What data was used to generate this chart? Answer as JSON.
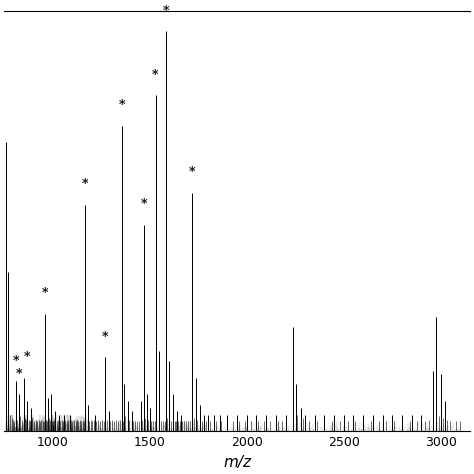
{
  "xlim": [
    750,
    3150
  ],
  "ylim": [
    0,
    2.5
  ],
  "xlabel": "m/z",
  "xticks": [
    1000,
    1500,
    2000,
    2500,
    3000
  ],
  "background_color": "#ffffff",
  "major_peaks": [
    {
      "mz": 760,
      "intensity": 1.72
    },
    {
      "mz": 770,
      "intensity": 0.95
    },
    {
      "mz": 810,
      "intensity": 0.3
    },
    {
      "mz": 825,
      "intensity": 0.22
    },
    {
      "mz": 850,
      "intensity": 0.32
    },
    {
      "mz": 870,
      "intensity": 0.18
    },
    {
      "mz": 890,
      "intensity": 0.14
    },
    {
      "mz": 960,
      "intensity": 0.7
    },
    {
      "mz": 975,
      "intensity": 0.2
    },
    {
      "mz": 992,
      "intensity": 0.22
    },
    {
      "mz": 1010,
      "intensity": 0.12
    },
    {
      "mz": 1035,
      "intensity": 0.1
    },
    {
      "mz": 1060,
      "intensity": 0.1
    },
    {
      "mz": 1090,
      "intensity": 0.1
    },
    {
      "mz": 1168,
      "intensity": 1.35
    },
    {
      "mz": 1180,
      "intensity": 0.16
    },
    {
      "mz": 1220,
      "intensity": 0.1
    },
    {
      "mz": 1270,
      "intensity": 0.44
    },
    {
      "mz": 1290,
      "intensity": 0.12
    },
    {
      "mz": 1355,
      "intensity": 1.82
    },
    {
      "mz": 1370,
      "intensity": 0.28
    },
    {
      "mz": 1390,
      "intensity": 0.18
    },
    {
      "mz": 1410,
      "intensity": 0.12
    },
    {
      "mz": 1455,
      "intensity": 0.18
    },
    {
      "mz": 1470,
      "intensity": 1.23
    },
    {
      "mz": 1485,
      "intensity": 0.22
    },
    {
      "mz": 1500,
      "intensity": 0.14
    },
    {
      "mz": 1530,
      "intensity": 2.0
    },
    {
      "mz": 1548,
      "intensity": 0.48
    },
    {
      "mz": 1584,
      "intensity": 2.38
    },
    {
      "mz": 1600,
      "intensity": 0.42
    },
    {
      "mz": 1620,
      "intensity": 0.22
    },
    {
      "mz": 1640,
      "intensity": 0.12
    },
    {
      "mz": 1660,
      "intensity": 0.1
    },
    {
      "mz": 1720,
      "intensity": 1.42
    },
    {
      "mz": 1738,
      "intensity": 0.32
    },
    {
      "mz": 1760,
      "intensity": 0.16
    },
    {
      "mz": 1780,
      "intensity": 0.1
    },
    {
      "mz": 1800,
      "intensity": 0.1
    },
    {
      "mz": 1830,
      "intensity": 0.1
    },
    {
      "mz": 1860,
      "intensity": 0.1
    },
    {
      "mz": 1900,
      "intensity": 0.1
    },
    {
      "mz": 1950,
      "intensity": 0.1
    },
    {
      "mz": 2000,
      "intensity": 0.1
    },
    {
      "mz": 2050,
      "intensity": 0.1
    },
    {
      "mz": 2100,
      "intensity": 0.1
    },
    {
      "mz": 2150,
      "intensity": 0.1
    },
    {
      "mz": 2200,
      "intensity": 0.1
    },
    {
      "mz": 2240,
      "intensity": 0.62
    },
    {
      "mz": 2256,
      "intensity": 0.28
    },
    {
      "mz": 2280,
      "intensity": 0.14
    },
    {
      "mz": 2300,
      "intensity": 0.1
    },
    {
      "mz": 2350,
      "intensity": 0.1
    },
    {
      "mz": 2400,
      "intensity": 0.1
    },
    {
      "mz": 2450,
      "intensity": 0.1
    },
    {
      "mz": 2500,
      "intensity": 0.1
    },
    {
      "mz": 2550,
      "intensity": 0.1
    },
    {
      "mz": 2600,
      "intensity": 0.1
    },
    {
      "mz": 2650,
      "intensity": 0.1
    },
    {
      "mz": 2700,
      "intensity": 0.1
    },
    {
      "mz": 2750,
      "intensity": 0.1
    },
    {
      "mz": 2800,
      "intensity": 0.1
    },
    {
      "mz": 2850,
      "intensity": 0.1
    },
    {
      "mz": 2900,
      "intensity": 0.1
    },
    {
      "mz": 2960,
      "intensity": 0.36
    },
    {
      "mz": 2978,
      "intensity": 0.68
    },
    {
      "mz": 3000,
      "intensity": 0.34
    },
    {
      "mz": 3020,
      "intensity": 0.18
    }
  ],
  "star_annotations": [
    {
      "mz": 810,
      "star_y": 0.38
    },
    {
      "mz": 825,
      "star_y": 0.3
    },
    {
      "mz": 870,
      "star_y": 0.4
    },
    {
      "mz": 960,
      "star_y": 0.78
    },
    {
      "mz": 1168,
      "star_y": 1.43
    },
    {
      "mz": 1270,
      "star_y": 0.52
    },
    {
      "mz": 1355,
      "star_y": 1.9
    },
    {
      "mz": 1470,
      "star_y": 1.31
    },
    {
      "mz": 1530,
      "star_y": 2.08
    },
    {
      "mz": 1584,
      "star_y": 2.46
    },
    {
      "mz": 1720,
      "star_y": 1.5
    }
  ],
  "noise_peaks_800_1100": [
    [
      780,
      0.1
    ],
    [
      788,
      0.08
    ],
    [
      795,
      0.07
    ],
    [
      800,
      0.06
    ],
    [
      815,
      0.07
    ],
    [
      833,
      0.09
    ],
    [
      840,
      0.07
    ],
    [
      855,
      0.08
    ],
    [
      863,
      0.07
    ],
    [
      878,
      0.07
    ],
    [
      885,
      0.06
    ],
    [
      895,
      0.08
    ],
    [
      905,
      0.06
    ],
    [
      912,
      0.07
    ],
    [
      920,
      0.06
    ],
    [
      928,
      0.07
    ],
    [
      935,
      0.06
    ],
    [
      942,
      0.07
    ],
    [
      948,
      0.06
    ],
    [
      955,
      0.06
    ],
    [
      965,
      0.07
    ],
    [
      970,
      0.06
    ],
    [
      980,
      0.08
    ],
    [
      988,
      0.07
    ],
    [
      995,
      0.06
    ],
    [
      1000,
      0.06
    ],
    [
      1005,
      0.07
    ],
    [
      1012,
      0.06
    ],
    [
      1020,
      0.06
    ],
    [
      1028,
      0.07
    ],
    [
      1040,
      0.06
    ],
    [
      1048,
      0.07
    ],
    [
      1055,
      0.06
    ],
    [
      1065,
      0.07
    ],
    [
      1072,
      0.06
    ],
    [
      1080,
      0.07
    ],
    [
      1088,
      0.06
    ],
    [
      1095,
      0.07
    ],
    [
      1102,
      0.06
    ],
    [
      1110,
      0.07
    ],
    [
      1118,
      0.06
    ],
    [
      1125,
      0.07
    ],
    [
      1132,
      0.06
    ],
    [
      1140,
      0.07
    ],
    [
      1148,
      0.06
    ],
    [
      1155,
      0.07
    ],
    [
      1160,
      0.06
    ]
  ],
  "noise_peaks_1100_1800": [
    [
      1185,
      0.06
    ],
    [
      1195,
      0.07
    ],
    [
      1205,
      0.06
    ],
    [
      1215,
      0.07
    ],
    [
      1225,
      0.06
    ],
    [
      1235,
      0.07
    ],
    [
      1245,
      0.06
    ],
    [
      1255,
      0.07
    ],
    [
      1265,
      0.06
    ],
    [
      1280,
      0.07
    ],
    [
      1295,
      0.06
    ],
    [
      1305,
      0.07
    ],
    [
      1315,
      0.06
    ],
    [
      1325,
      0.07
    ],
    [
      1335,
      0.06
    ],
    [
      1345,
      0.07
    ],
    [
      1360,
      0.06
    ],
    [
      1375,
      0.09
    ],
    [
      1395,
      0.07
    ],
    [
      1415,
      0.06
    ],
    [
      1425,
      0.06
    ],
    [
      1435,
      0.06
    ],
    [
      1445,
      0.06
    ],
    [
      1460,
      0.07
    ],
    [
      1475,
      0.08
    ],
    [
      1490,
      0.07
    ],
    [
      1505,
      0.06
    ],
    [
      1515,
      0.06
    ],
    [
      1525,
      0.06
    ],
    [
      1535,
      0.08
    ],
    [
      1550,
      0.06
    ],
    [
      1560,
      0.06
    ],
    [
      1570,
      0.06
    ],
    [
      1580,
      0.06
    ],
    [
      1590,
      0.08
    ],
    [
      1608,
      0.06
    ],
    [
      1618,
      0.06
    ],
    [
      1628,
      0.06
    ],
    [
      1638,
      0.06
    ],
    [
      1648,
      0.06
    ],
    [
      1658,
      0.06
    ],
    [
      1668,
      0.06
    ],
    [
      1678,
      0.06
    ],
    [
      1688,
      0.06
    ],
    [
      1698,
      0.06
    ],
    [
      1708,
      0.06
    ],
    [
      1718,
      0.07
    ],
    [
      1728,
      0.08
    ],
    [
      1745,
      0.07
    ],
    [
      1758,
      0.07
    ],
    [
      1770,
      0.06
    ],
    [
      1780,
      0.06
    ],
    [
      1790,
      0.06
    ]
  ],
  "noise_peaks_1800_3100": [
    [
      1810,
      0.06
    ],
    [
      1840,
      0.06
    ],
    [
      1870,
      0.06
    ],
    [
      1900,
      0.06
    ],
    [
      1930,
      0.06
    ],
    [
      1960,
      0.06
    ],
    [
      1990,
      0.06
    ],
    [
      2020,
      0.06
    ],
    [
      2060,
      0.06
    ],
    [
      2090,
      0.06
    ],
    [
      2120,
      0.06
    ],
    [
      2160,
      0.06
    ],
    [
      2180,
      0.06
    ],
    [
      2260,
      0.1
    ],
    [
      2290,
      0.08
    ],
    [
      2320,
      0.06
    ],
    [
      2360,
      0.06
    ],
    [
      2400,
      0.06
    ],
    [
      2440,
      0.06
    ],
    [
      2480,
      0.06
    ],
    [
      2520,
      0.06
    ],
    [
      2560,
      0.06
    ],
    [
      2600,
      0.06
    ],
    [
      2640,
      0.06
    ],
    [
      2680,
      0.06
    ],
    [
      2720,
      0.06
    ],
    [
      2760,
      0.06
    ],
    [
      2800,
      0.06
    ],
    [
      2840,
      0.06
    ],
    [
      2880,
      0.06
    ],
    [
      2920,
      0.06
    ],
    [
      2940,
      0.07
    ],
    [
      2990,
      0.09
    ],
    [
      3010,
      0.08
    ],
    [
      3030,
      0.07
    ],
    [
      3050,
      0.06
    ],
    [
      3080,
      0.06
    ],
    [
      3100,
      0.06
    ]
  ]
}
